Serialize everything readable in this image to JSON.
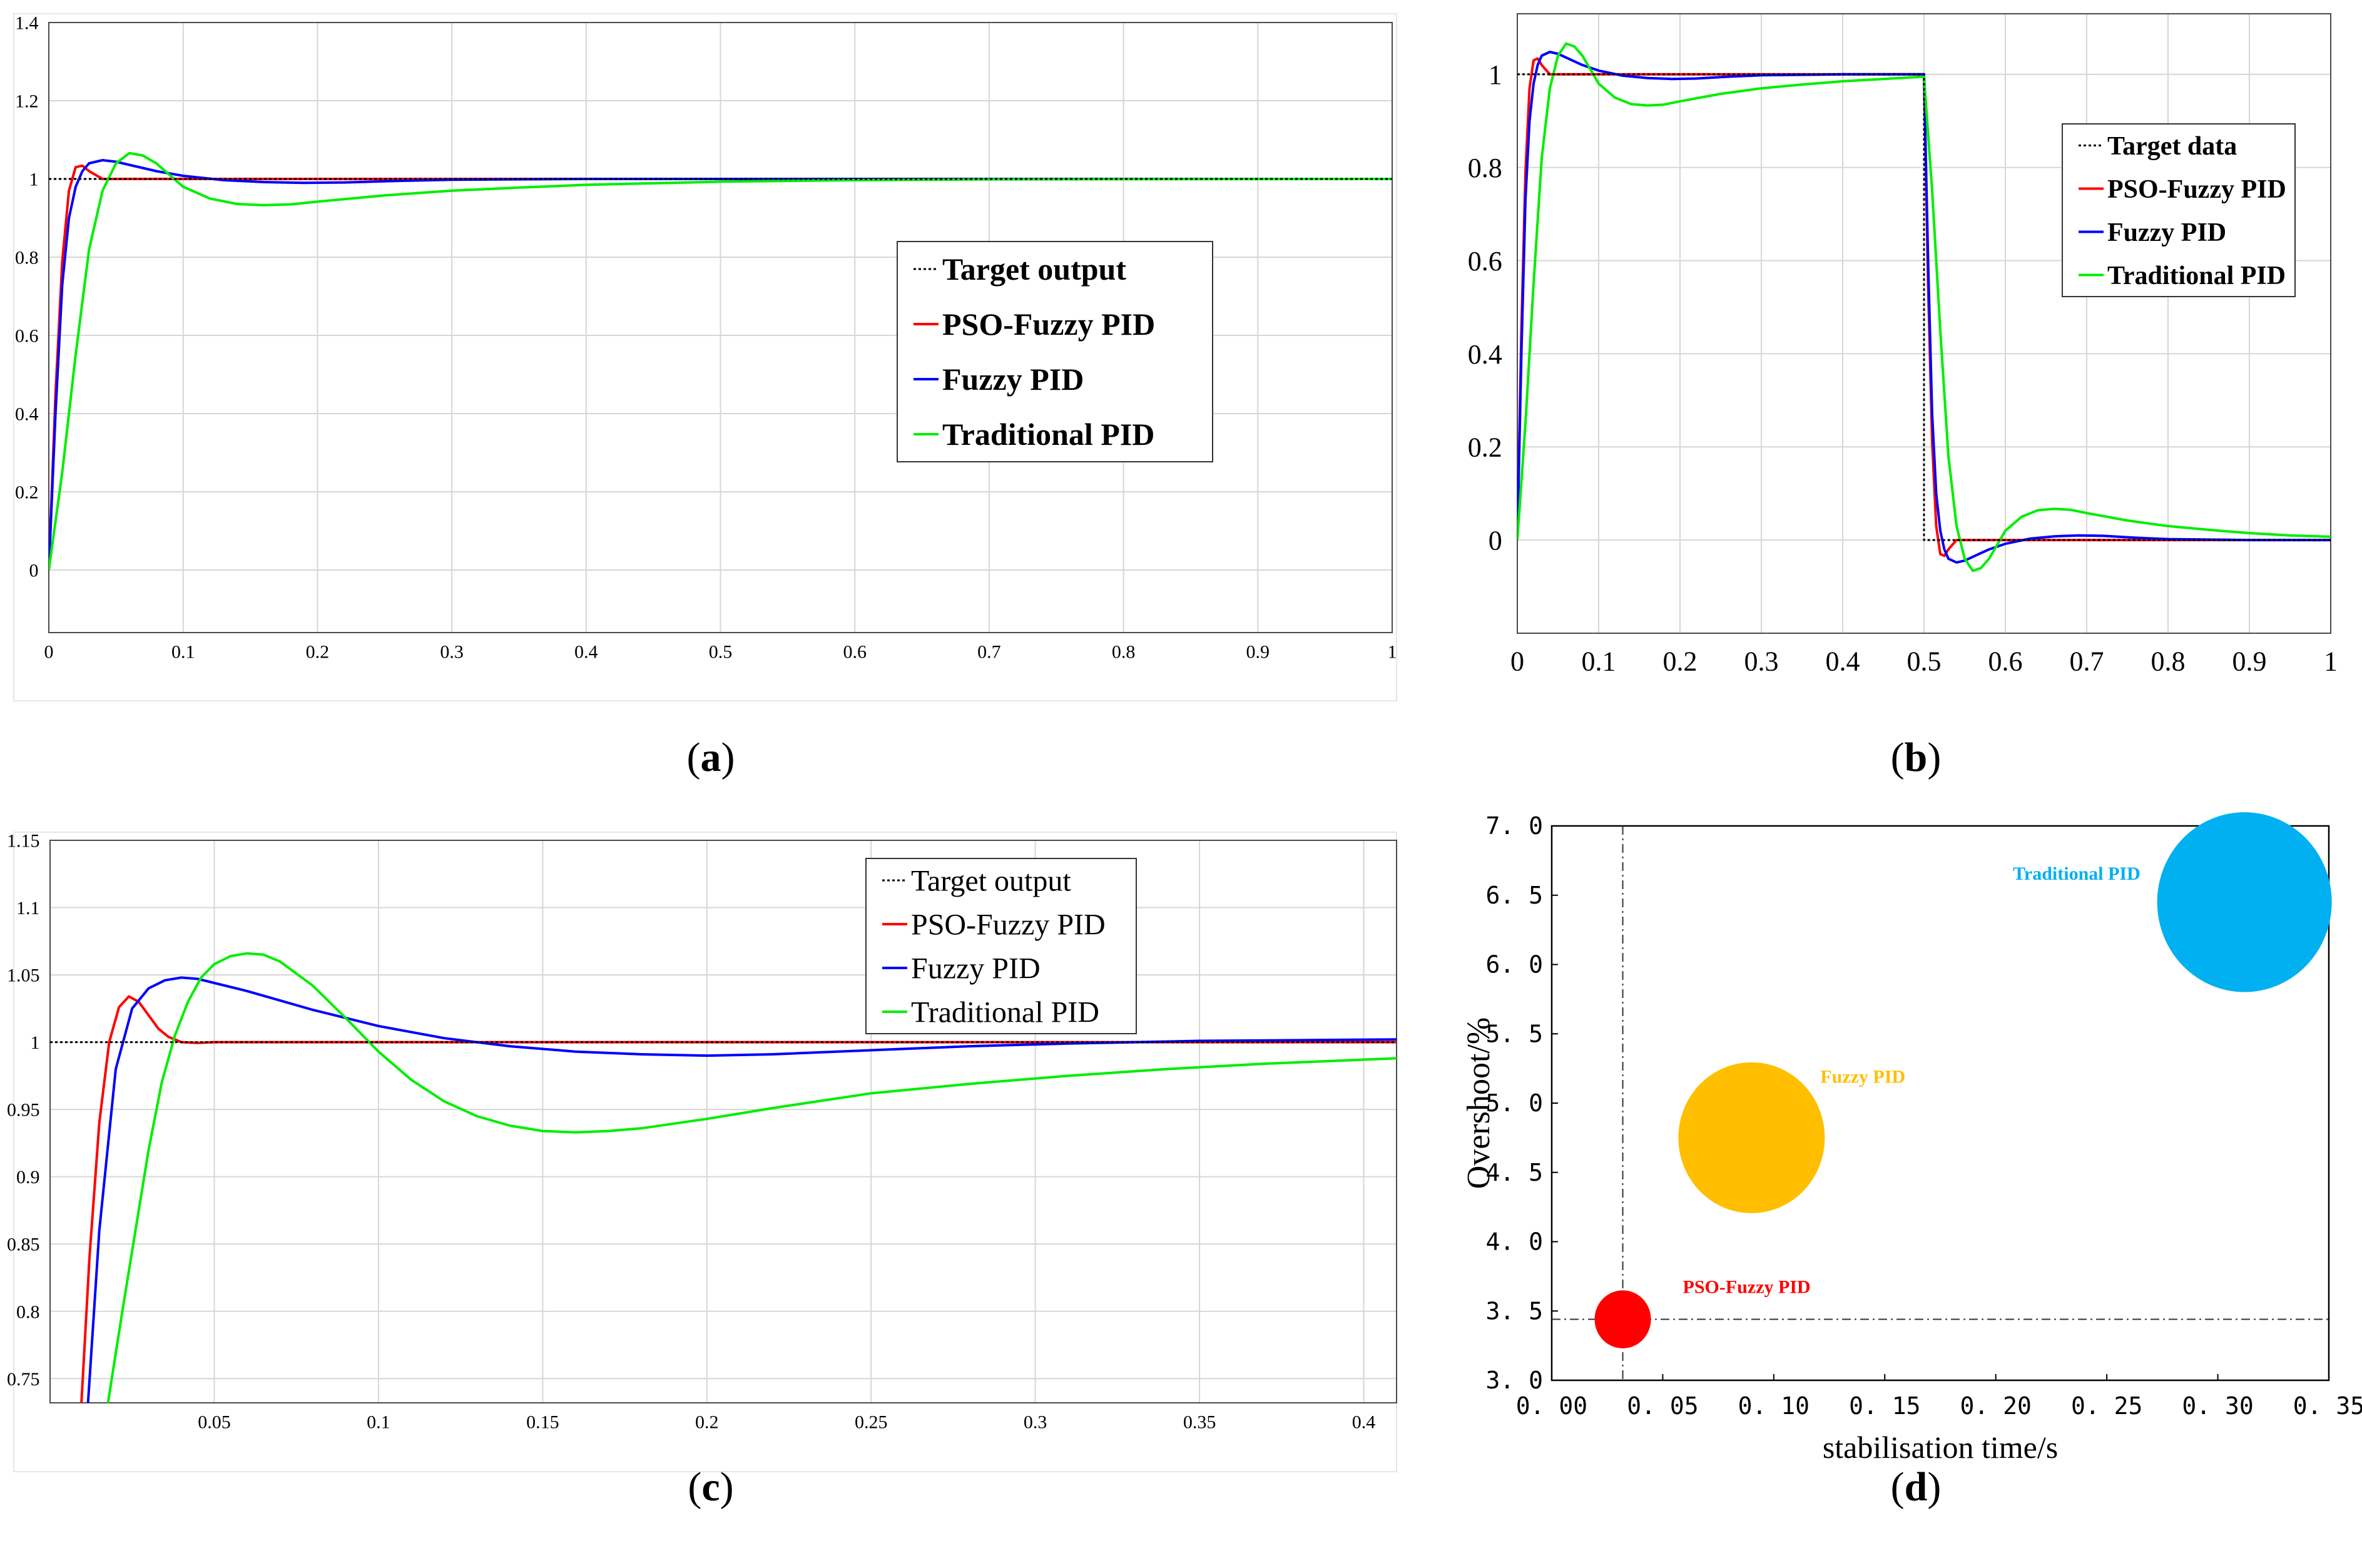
{
  "figure": {
    "captions": [
      {
        "open": "(",
        "letter": "a",
        "close": ")"
      },
      {
        "open": "(",
        "letter": "b",
        "close": ")"
      },
      {
        "open": "(",
        "letter": "c",
        "close": ")"
      },
      {
        "open": "(",
        "letter": "d",
        "close": ")"
      }
    ]
  },
  "colors": {
    "target": "#000000",
    "pso": "#ff0000",
    "fuzzy": "#0000ff",
    "traditional": "#00ee00",
    "grid": "#d6d6d6",
    "bubble_pso": "#ff0000",
    "bubble_fuzzy": "#ffbf00",
    "bubble_traditional": "#00b0f0"
  },
  "chart_data": [
    {
      "id": "a",
      "type": "line",
      "title": "",
      "xlabel": "",
      "ylabel": "",
      "xlim": [
        0,
        1
      ],
      "ylim": [
        -0.16,
        1.4
      ],
      "xticks": [
        "0",
        "0.1",
        "0.2",
        "0.3",
        "0.4",
        "0.5",
        "0.6",
        "0.7",
        "0.8",
        "0.9",
        "1"
      ],
      "yticks": [
        "0",
        "0.2",
        "0.4",
        "0.6",
        "0.8",
        "1",
        "1.2",
        "1.4"
      ],
      "grid": true,
      "legend_position": "center-right",
      "series": [
        {
          "name": "Target output",
          "key": "target",
          "x": [
            0,
            1
          ],
          "y": [
            1,
            1
          ]
        },
        {
          "name": "PSO-Fuzzy PID",
          "key": "pso",
          "x": [
            0,
            0.005,
            0.01,
            0.015,
            0.02,
            0.025,
            0.03,
            0.04,
            0.05,
            0.07,
            1
          ],
          "y": [
            0,
            0.45,
            0.79,
            0.97,
            1.03,
            1.034,
            1.02,
            1.0,
            1.0,
            1.0,
            1.0
          ]
        },
        {
          "name": "Fuzzy PID",
          "key": "fuzzy",
          "x": [
            0,
            0.005,
            0.01,
            0.015,
            0.02,
            0.025,
            0.03,
            0.04,
            0.05,
            0.06,
            0.08,
            0.1,
            0.13,
            0.16,
            0.19,
            0.22,
            0.26,
            0.3,
            0.4,
            0.5,
            1
          ],
          "y": [
            0,
            0.4,
            0.73,
            0.9,
            0.98,
            1.02,
            1.04,
            1.048,
            1.044,
            1.036,
            1.02,
            1.008,
            0.997,
            0.992,
            0.99,
            0.991,
            0.995,
            0.998,
            1.0,
            1.0,
            1.0
          ]
        },
        {
          "name": "Traditional PID",
          "key": "traditional",
          "x": [
            0,
            0.01,
            0.02,
            0.03,
            0.04,
            0.05,
            0.06,
            0.07,
            0.08,
            0.09,
            0.1,
            0.12,
            0.14,
            0.16,
            0.18,
            0.2,
            0.25,
            0.3,
            0.35,
            0.4,
            0.5,
            0.6,
            0.7,
            1
          ],
          "y": [
            0,
            0.25,
            0.55,
            0.82,
            0.97,
            1.04,
            1.066,
            1.06,
            1.04,
            1.01,
            0.98,
            0.95,
            0.936,
            0.933,
            0.935,
            0.942,
            0.958,
            0.97,
            0.978,
            0.985,
            0.993,
            0.997,
            0.999,
            1.0
          ]
        }
      ]
    },
    {
      "id": "b",
      "type": "line",
      "title": "",
      "xlabel": "",
      "ylabel": "",
      "xlim": [
        0,
        1
      ],
      "ylim": [
        -0.2,
        1.13
      ],
      "xticks": [
        "0",
        "0.1",
        "0.2",
        "0.3",
        "0.4",
        "0.5",
        "0.6",
        "0.7",
        "0.8",
        "0.9",
        "1"
      ],
      "yticks": [
        "0",
        "0.2",
        "0.4",
        "0.6",
        "0.8",
        "1"
      ],
      "grid": true,
      "legend_position": "top-right",
      "series": [
        {
          "name": "Target data",
          "key": "target",
          "x": [
            0,
            0.5,
            0.5,
            1
          ],
          "y": [
            1,
            1,
            0,
            0
          ]
        },
        {
          "name": "PSO-Fuzzy PID",
          "key": "pso",
          "x": [
            0,
            0.005,
            0.01,
            0.015,
            0.02,
            0.025,
            0.03,
            0.04,
            0.05,
            0.07,
            0.5,
            0.505,
            0.51,
            0.515,
            0.52,
            0.525,
            0.53,
            0.54,
            0.55,
            0.57,
            1
          ],
          "y": [
            0,
            0.45,
            0.79,
            0.97,
            1.03,
            1.034,
            1.02,
            1.0,
            1.0,
            1.0,
            1.0,
            0.55,
            0.21,
            0.03,
            -0.03,
            -0.034,
            -0.02,
            0.0,
            0.0,
            0.0,
            0.0
          ]
        },
        {
          "name": "Fuzzy PID",
          "key": "fuzzy",
          "x": [
            0,
            0.005,
            0.01,
            0.015,
            0.02,
            0.025,
            0.03,
            0.04,
            0.05,
            0.06,
            0.08,
            0.1,
            0.13,
            0.16,
            0.19,
            0.22,
            0.26,
            0.3,
            0.4,
            0.5,
            0.505,
            0.51,
            0.515,
            0.52,
            0.525,
            0.53,
            0.54,
            0.55,
            0.56,
            0.58,
            0.6,
            0.63,
            0.66,
            0.69,
            0.72,
            0.76,
            0.8,
            0.9,
            1
          ],
          "y": [
            0,
            0.4,
            0.73,
            0.9,
            0.98,
            1.02,
            1.04,
            1.048,
            1.044,
            1.036,
            1.02,
            1.008,
            0.997,
            0.992,
            0.99,
            0.991,
            0.995,
            0.998,
            1.0,
            1.0,
            0.6,
            0.27,
            0.1,
            0.02,
            -0.02,
            -0.04,
            -0.048,
            -0.044,
            -0.036,
            -0.02,
            -0.008,
            0.003,
            0.008,
            0.01,
            0.009,
            0.005,
            0.002,
            0.0,
            0.0
          ]
        },
        {
          "name": "Traditional PID",
          "key": "traditional",
          "x": [
            0,
            0.01,
            0.02,
            0.03,
            0.04,
            0.05,
            0.06,
            0.07,
            0.08,
            0.09,
            0.1,
            0.12,
            0.14,
            0.16,
            0.18,
            0.2,
            0.25,
            0.3,
            0.35,
            0.4,
            0.45,
            0.5,
            0.51,
            0.52,
            0.53,
            0.54,
            0.55,
            0.56,
            0.57,
            0.58,
            0.59,
            0.6,
            0.62,
            0.64,
            0.66,
            0.68,
            0.7,
            0.75,
            0.8,
            0.85,
            0.9,
            0.95,
            1
          ],
          "y": [
            0,
            0.25,
            0.55,
            0.82,
            0.97,
            1.04,
            1.066,
            1.06,
            1.04,
            1.01,
            0.98,
            0.95,
            0.936,
            0.933,
            0.935,
            0.942,
            0.958,
            0.97,
            0.978,
            0.985,
            0.99,
            0.995,
            0.75,
            0.45,
            0.18,
            0.03,
            -0.04,
            -0.066,
            -0.06,
            -0.04,
            -0.01,
            0.02,
            0.05,
            0.064,
            0.067,
            0.065,
            0.058,
            0.042,
            0.03,
            0.022,
            0.015,
            0.01,
            0.007
          ]
        }
      ]
    },
    {
      "id": "c",
      "type": "line",
      "title": "",
      "xlabel": "",
      "ylabel": "",
      "xlim": [
        0,
        0.41
      ],
      "ylim": [
        0.732,
        1.15
      ],
      "xticks": [
        "0.05",
        "0.1",
        "0.15",
        "0.2",
        "0.25",
        "0.3",
        "0.35",
        "0.4"
      ],
      "yticks": [
        "0.75",
        "0.8",
        "0.85",
        "0.9",
        "0.95",
        "1",
        "1.05",
        "1.1",
        "1.15"
      ],
      "grid": true,
      "legend_position": "top-right",
      "series": [
        {
          "name": "Target output",
          "key": "target",
          "x": [
            0,
            0.41
          ],
          "y": [
            1,
            1
          ]
        },
        {
          "name": "PSO-Fuzzy PID",
          "key": "pso",
          "x": [
            0.0095,
            0.012,
            0.015,
            0.018,
            0.021,
            0.024,
            0.027,
            0.03,
            0.033,
            0.036,
            0.04,
            0.045,
            0.05,
            0.06,
            0.41
          ],
          "y": [
            0.73,
            0.84,
            0.94,
            1.0,
            1.026,
            1.034,
            1.03,
            1.02,
            1.01,
            1.004,
            1.0,
            0.9995,
            1.0,
            1.0,
            1.0
          ]
        },
        {
          "name": "Fuzzy PID",
          "key": "fuzzy",
          "x": [
            0.0115,
            0.015,
            0.02,
            0.025,
            0.03,
            0.035,
            0.04,
            0.045,
            0.05,
            0.06,
            0.07,
            0.08,
            0.1,
            0.12,
            0.14,
            0.16,
            0.18,
            0.2,
            0.22,
            0.25,
            0.28,
            0.31,
            0.35,
            0.41
          ],
          "y": [
            0.73,
            0.86,
            0.98,
            1.025,
            1.04,
            1.046,
            1.048,
            1.047,
            1.044,
            1.038,
            1.031,
            1.024,
            1.012,
            1.003,
            0.997,
            0.993,
            0.991,
            0.99,
            0.991,
            0.994,
            0.997,
            0.999,
            1.001,
            1.002
          ]
        },
        {
          "name": "Traditional PID",
          "key": "traditional",
          "x": [
            0.0175,
            0.022,
            0.026,
            0.03,
            0.034,
            0.038,
            0.042,
            0.046,
            0.05,
            0.055,
            0.06,
            0.065,
            0.07,
            0.08,
            0.09,
            0.1,
            0.11,
            0.12,
            0.13,
            0.14,
            0.15,
            0.16,
            0.17,
            0.18,
            0.2,
            0.22,
            0.25,
            0.28,
            0.31,
            0.34,
            0.37,
            0.41
          ],
          "y": [
            0.73,
            0.8,
            0.86,
            0.92,
            0.97,
            1.005,
            1.03,
            1.048,
            1.058,
            1.064,
            1.066,
            1.065,
            1.06,
            1.042,
            1.018,
            0.993,
            0.972,
            0.956,
            0.945,
            0.938,
            0.934,
            0.933,
            0.934,
            0.936,
            0.943,
            0.951,
            0.962,
            0.969,
            0.975,
            0.98,
            0.984,
            0.988
          ]
        }
      ]
    },
    {
      "id": "d",
      "type": "scatter",
      "title": "",
      "xlabel": "stabilisation time/s",
      "ylabel": "Overshoot/%",
      "xlim": [
        0,
        0.35
      ],
      "ylim": [
        3.0,
        7.0
      ],
      "xticks": [
        "0. 00",
        "0. 05",
        "0. 10",
        "0. 15",
        "0. 20",
        "0. 25",
        "0. 30",
        "0. 35"
      ],
      "yticks": [
        "3. 0",
        "3. 5",
        "4. 0",
        "4. 5",
        "5. 0",
        "5. 5",
        "6. 0",
        "6. 5",
        "7. 0"
      ],
      "grid": false,
      "reference_lines": {
        "x": 0.032,
        "y": 3.44
      },
      "points": [
        {
          "name": "PSO-Fuzzy PID",
          "key": "bubble_pso",
          "x": 0.032,
          "y": 3.44,
          "size": 1
        },
        {
          "name": "Fuzzy PID",
          "key": "bubble_fuzzy",
          "x": 0.09,
          "y": 4.75,
          "size": 2.6
        },
        {
          "name": "Traditional PID",
          "key": "bubble_traditional",
          "x": 0.312,
          "y": 6.45,
          "size": 3.1
        }
      ]
    }
  ]
}
